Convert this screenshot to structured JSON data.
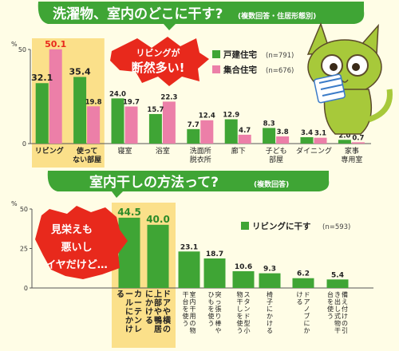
{
  "chart_data": [
    {
      "type": "bar",
      "title": "洗濯物、室内のどこに干す?",
      "subtitle": "(複数回答・住居形態別)",
      "ylabel": "%",
      "ylim": [
        0,
        50
      ],
      "yticks": [
        0,
        50
      ],
      "categories": [
        "リビング",
        "使って ない部屋",
        "寝室",
        "浴室",
        "洗面所 脱衣所",
        "廊下",
        "子ども 部屋",
        "ダイニング",
        "家事 専用室"
      ],
      "series": [
        {
          "name": "戸建住宅",
          "n": "(n=791)",
          "color": "#3fa535",
          "values": [
            32.1,
            35.4,
            24.0,
            15.7,
            7.7,
            12.9,
            8.3,
            3.4,
            2.0
          ]
        },
        {
          "name": "集合住宅",
          "n": "(n=676)",
          "color": "#ec7fa8",
          "values": [
            50.1,
            19.8,
            19.7,
            22.3,
            12.4,
            4.7,
            3.8,
            3.1,
            0.7
          ]
        }
      ],
      "annotation": "リビングが 断然多い!",
      "highlight": [
        "リビング",
        "使って ない部屋"
      ],
      "legend_position": "right"
    },
    {
      "type": "bar",
      "title": "室内干しの方法って?",
      "subtitle": "(複数回答)",
      "ylabel": "%",
      "ylim": [
        0,
        50
      ],
      "yticks": [
        0,
        25,
        50
      ],
      "categories": [
        "カーテンレールにかける",
        "ドアや横の上部や鴨居にかける",
        "室内干用の物干台を使う",
        "突っ張り棒やひもを使う",
        "スタンド型小物干しを使う",
        "椅子にかける",
        "ドアノブにかける",
        "備え付けの引き出し式物干台を使う"
      ],
      "series": [
        {
          "name": "リビングに干す",
          "n": "(n=593)",
          "color": "#3fa535",
          "values": [
            44.5,
            40.0,
            23.1,
            18.7,
            10.6,
            9.3,
            6.2,
            5.4
          ]
        }
      ],
      "annotation": "見栄えも 悪いし イヤだけど…",
      "highlight": [
        "カーテンレールにかける",
        "ドアや横の上部や鴨居にかける"
      ],
      "legend_position": "right"
    }
  ]
}
